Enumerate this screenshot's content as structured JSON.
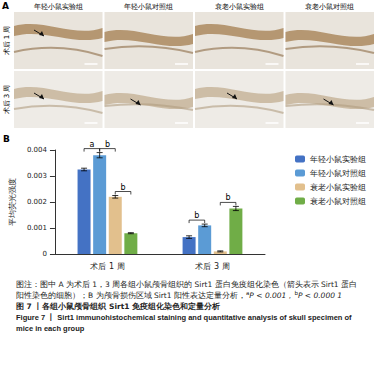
{
  "panel_a": {
    "label": "A",
    "columns": [
      "年轻小鼠实验组",
      "年轻小鼠对照组",
      "衰老小鼠实验组",
      "衰老小鼠对照组"
    ],
    "rows": [
      "术后 1 周",
      "术后 3 周"
    ]
  },
  "chart_data": {
    "label": "B",
    "type": "bar",
    "categories": [
      "术后 1 周",
      "术后 3 周"
    ],
    "series": [
      {
        "name": "年轻小鼠实验组",
        "color": "#4472c4",
        "values": [
          0.00325,
          0.00065
        ],
        "errors": [
          5e-05,
          5e-05
        ]
      },
      {
        "name": "年轻小鼠对照组",
        "color": "#5b9bd5",
        "values": [
          0.0038,
          0.0011
        ],
        "errors": [
          0.0001,
          5e-05
        ]
      },
      {
        "name": "衰老小鼠实验组",
        "color": "#e2c08d",
        "values": [
          0.0022,
          0.0001
        ],
        "errors": [
          5e-05,
          2e-05
        ]
      },
      {
        "name": "衰老小鼠对照组",
        "color": "#70ad47",
        "values": [
          0.0008,
          0.00175
        ],
        "errors": [
          2e-05,
          8e-05
        ]
      }
    ],
    "ylabel": "平均荧光强度",
    "ylim": [
      0,
      0.004
    ],
    "yticks": [
      0,
      0.001,
      0.002,
      0.003,
      0.004
    ],
    "grid": false,
    "legend": "right",
    "significance": [
      {
        "category": "术后 1 周",
        "from": "年轻小鼠实验组",
        "to": "年轻小鼠对照组",
        "label": "a"
      },
      {
        "category": "术后 1 周",
        "from": "年轻小鼠对照组",
        "to": "衰老小鼠实验组",
        "label": "b"
      },
      {
        "category": "术后 1 周",
        "from": "衰老小鼠实验组",
        "to": "衰老小鼠对照组",
        "label": "b"
      },
      {
        "category": "术后 3 周",
        "from": "年轻小鼠实验组",
        "to": "年轻小鼠对照组",
        "label": "b"
      },
      {
        "category": "术后 3 周",
        "from": "衰老小鼠实验组",
        "to": "衰老小鼠对照组",
        "label": "b"
      }
    ]
  },
  "caption": {
    "note": "图注：图中 A 为术后 1，3 周各组小鼠颅骨组织的 Sirt1 蛋白免疫组化染色（箭头表示 Sirt1 蛋白阳性染色的细胞）；B 为颅骨损伤区域 Sirt1 阳性表达定量分析，",
    "marks": [
      {
        "mark": "a",
        "text": "P < 0.001，"
      },
      {
        "mark": "b",
        "text": "P < 0.000 1"
      }
    ],
    "title_cn": "图 7 丨各组小鼠颅骨组织 Sirt1 免疫组化染色和定量分析",
    "title_en": "Figure 7 丨 Sirt1 immunohistochemical staining and quantitative analysis of skull specimen of mice in each group"
  }
}
